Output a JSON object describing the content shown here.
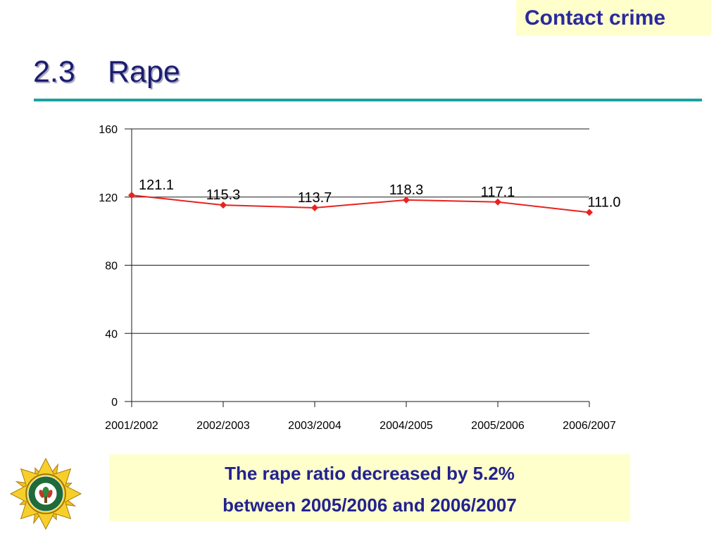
{
  "header": {
    "section_label": "Contact crime",
    "title_number": "2.3",
    "title_text": "Rape"
  },
  "colors": {
    "heading_blue": "#1c1c72",
    "accent_blue": "#2a2a9c",
    "teal_rule": "#1aa39f",
    "highlight_bg": "#ffffcc",
    "series_red": "#e8231f"
  },
  "chart_data": {
    "type": "line",
    "categories": [
      "2001/2002",
      "2002/2003",
      "2003/2004",
      "2004/2005",
      "2005/2006",
      "2006/2007"
    ],
    "series": [
      {
        "values": [
          121.1,
          115.3,
          113.7,
          118.3,
          117.1,
          111.0
        ],
        "labels": [
          "121.1",
          "115.3",
          "113.7",
          "118.3",
          "117.1",
          "111.0"
        ],
        "color": "#e8231f",
        "marker": "diamond"
      }
    ],
    "ylim": [
      0,
      160
    ],
    "yticks": [
      0,
      40,
      80,
      120,
      160
    ],
    "grid": true,
    "legend": "none"
  },
  "summary": {
    "line1": "The rape ratio decreased by 5.2%",
    "line2": "between 2005/2006 and 2006/2007"
  },
  "logo": {
    "icon": "saps-star-emblem-icon"
  }
}
